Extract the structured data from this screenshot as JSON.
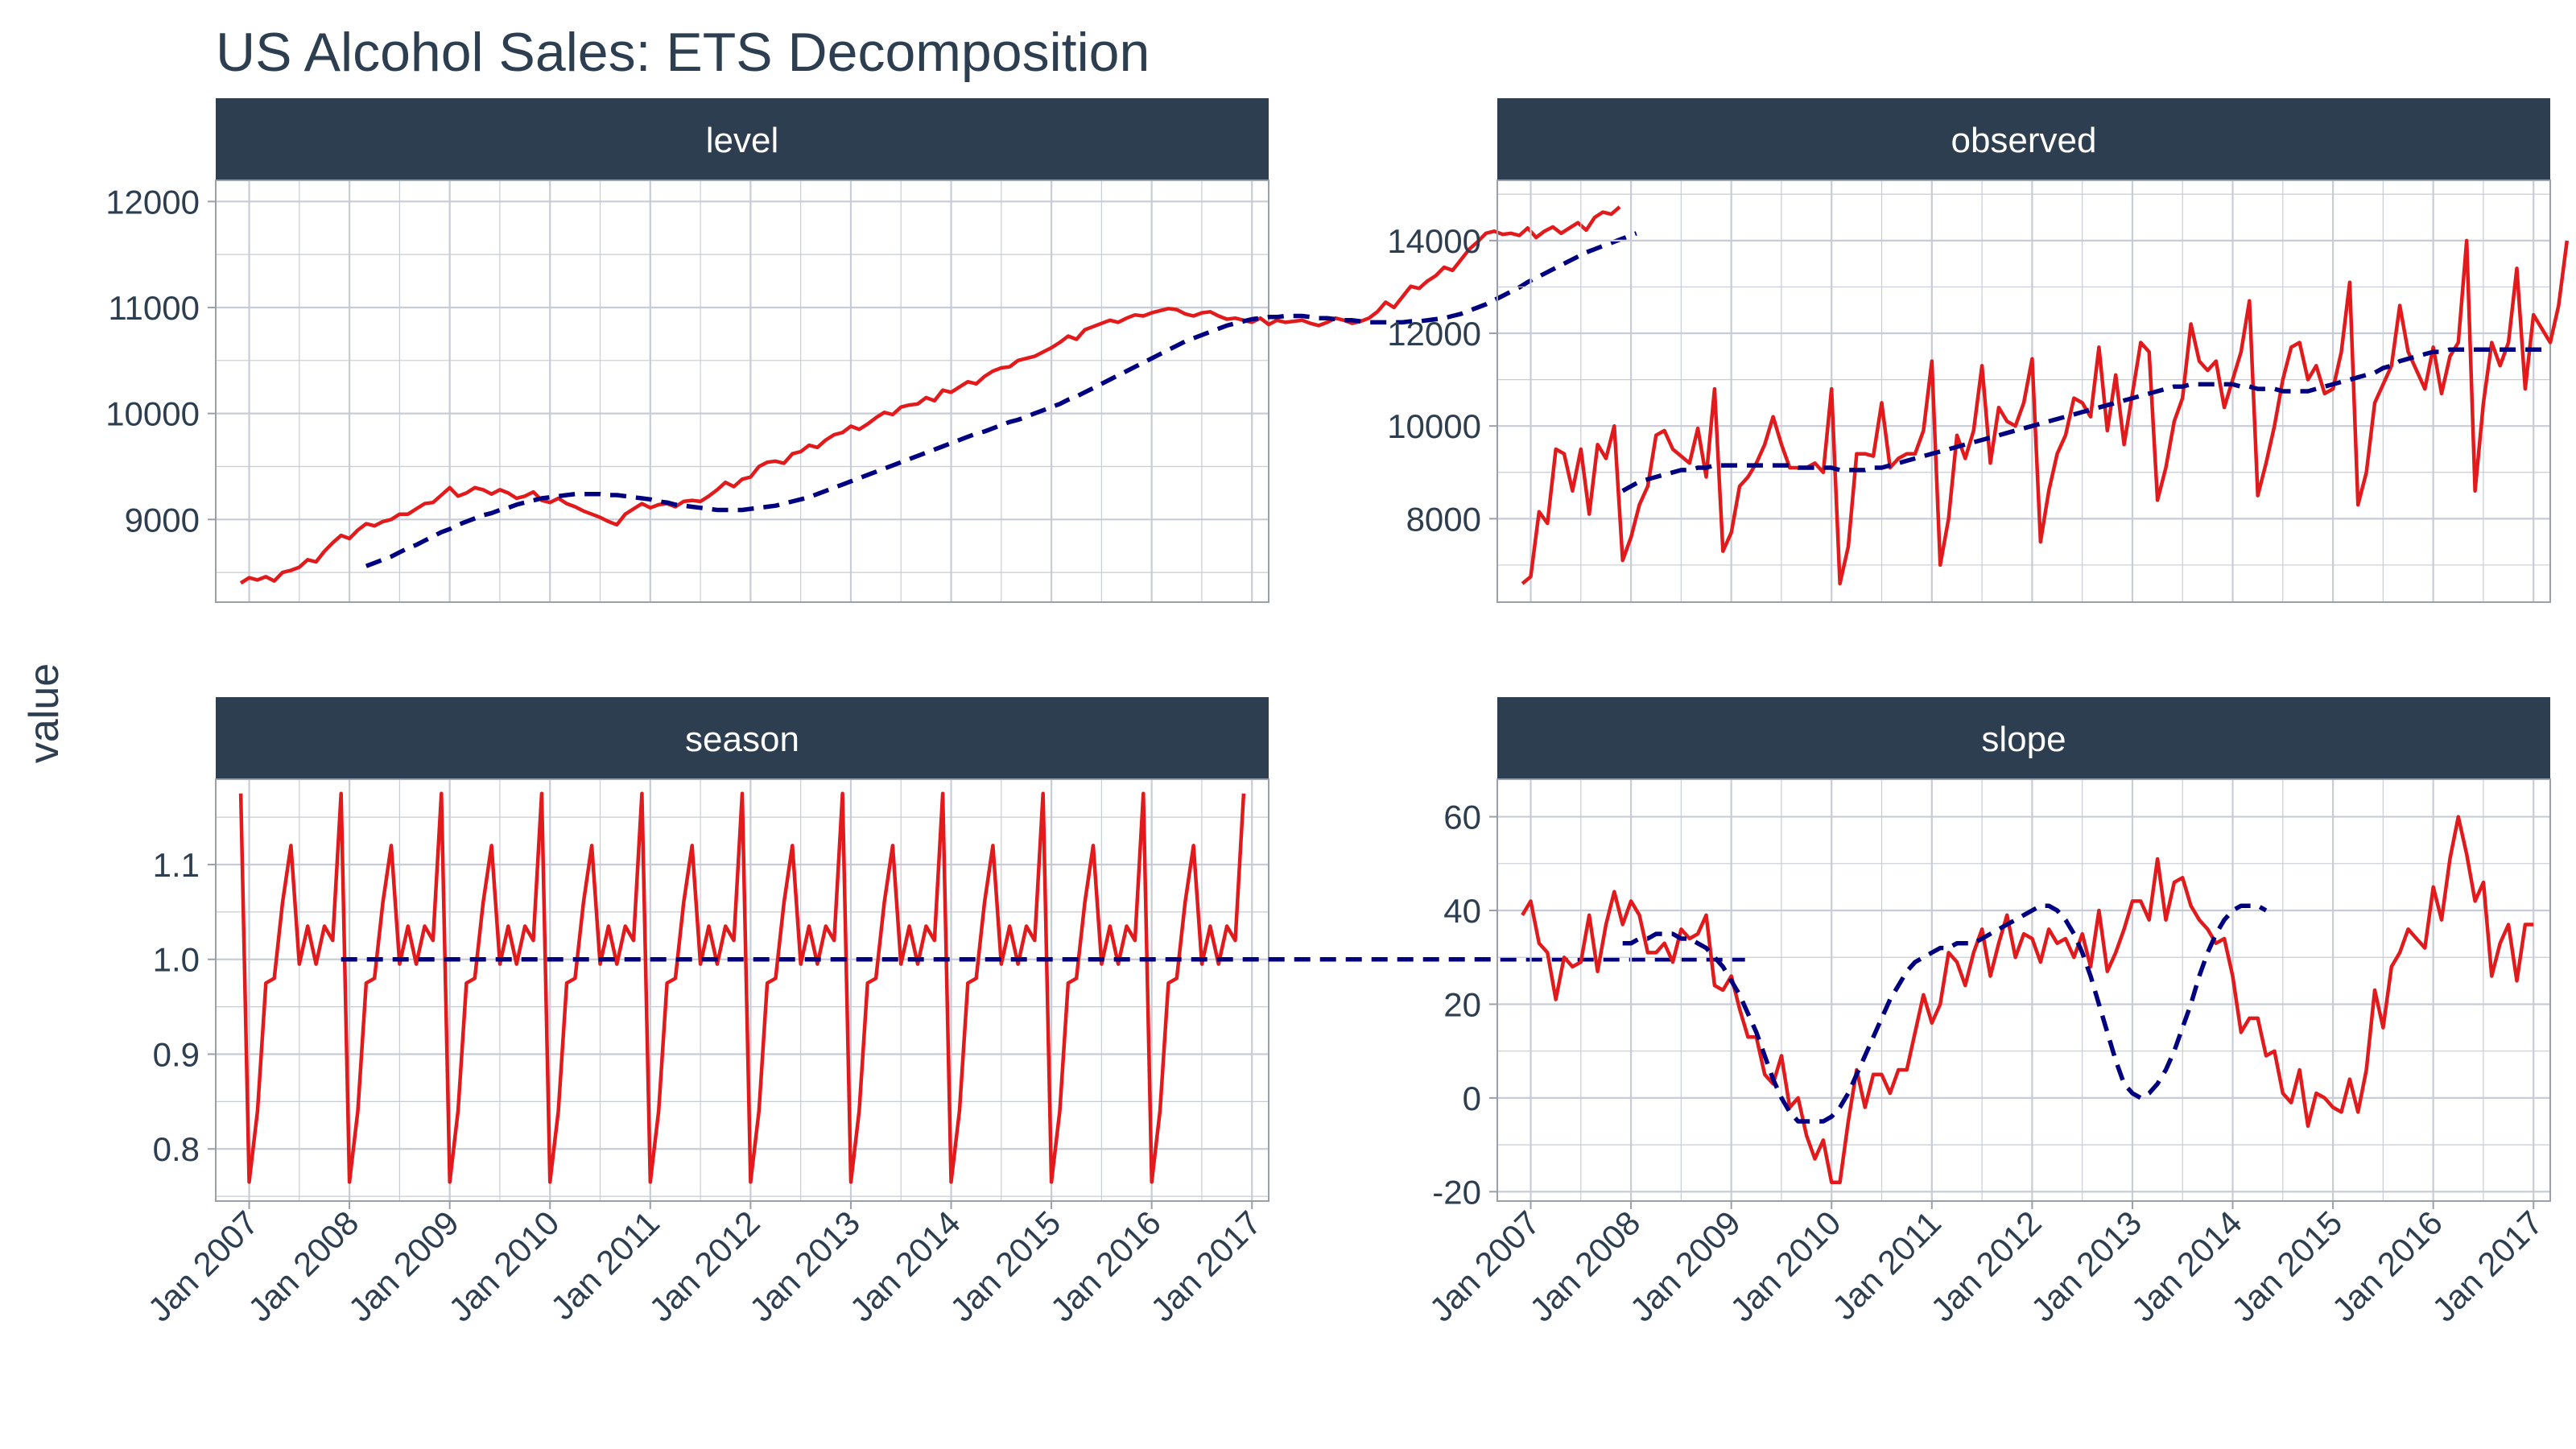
{
  "title": "US Alcohol Sales: ETS Decomposition",
  "ylabel": "value",
  "xlabel": "",
  "colors": {
    "observed": "#e31a1c",
    "trend": "#000080",
    "strip": "#2c3e50",
    "grid": "#c8ccd6",
    "text": "#2c3e50"
  },
  "x_tick_labels": [
    "Jan 2007",
    "Jan 2008",
    "Jan 2009",
    "Jan 2010",
    "Jan 2011",
    "Jan 2012",
    "Jan 2013",
    "Jan 2014",
    "Jan 2015",
    "Jan 2016",
    "Jan 2017"
  ],
  "chart_data": [
    {
      "type": "line",
      "panel": "level",
      "x_range": [
        "2006-09",
        "2017-03"
      ],
      "ylim": [
        8220,
        12200
      ],
      "y_ticks": [
        9000,
        10000,
        11000,
        12000
      ],
      "series": [
        {
          "style": "solid",
          "values": [
            8400,
            8450,
            8430,
            8460,
            8420,
            8500,
            8520,
            8550,
            8620,
            8600,
            8700,
            8780,
            8850,
            8820,
            8900,
            8960,
            8940,
            8980,
            9000,
            9050,
            9050,
            9100,
            9150,
            9160,
            9230,
            9300,
            9220,
            9250,
            9300,
            9280,
            9240,
            9280,
            9250,
            9200,
            9220,
            9260,
            9180,
            9160,
            9200,
            9150,
            9120,
            9080,
            9050,
            9020,
            8980,
            8950,
            9050,
            9100,
            9150,
            9110,
            9140,
            9150,
            9120,
            9170,
            9180,
            9170,
            9220,
            9280,
            9350,
            9310,
            9380,
            9400,
            9500,
            9540,
            9550,
            9530,
            9620,
            9640,
            9700,
            9680,
            9750,
            9800,
            9820,
            9880,
            9850,
            9900,
            9960,
            10010,
            9990,
            10060,
            10080,
            10090,
            10150,
            10120,
            10220,
            10200,
            10250,
            10300,
            10280,
            10350,
            10400,
            10430,
            10440,
            10500,
            10520,
            10540,
            10580,
            10620,
            10670,
            10730,
            10700,
            10790,
            10820,
            10850,
            10880,
            10860,
            10900,
            10930,
            10920,
            10950,
            10970,
            10990,
            10980,
            10940,
            10920,
            10950,
            10960,
            10920,
            10890,
            10900,
            10880,
            10860,
            10900,
            10840,
            10880,
            10860,
            10870,
            10880,
            10850,
            10830,
            10860,
            10900,
            10880,
            10850,
            10870,
            10900,
            10960,
            11050,
            11000,
            11100,
            11200,
            11180,
            11250,
            11300,
            11380,
            11350,
            11450,
            11550,
            11620,
            11700,
            11720,
            11690,
            11700,
            11680,
            11750,
            11660,
            11720,
            11760,
            11700,
            11750,
            11800,
            11730,
            11850,
            11900,
            11880,
            11950
          ]
        },
        {
          "style": "dashed",
          "values": [
            null,
            null,
            null,
            null,
            null,
            null,
            null,
            null,
            null,
            null,
            null,
            null,
            null,
            null,
            null,
            8560,
            8590,
            8620,
            8650,
            8690,
            8730,
            8760,
            8800,
            8840,
            8880,
            8910,
            8950,
            8980,
            9010,
            9040,
            9060,
            9090,
            9110,
            9140,
            9160,
            9180,
            9200,
            9210,
            9220,
            9230,
            9240,
            9240,
            9240,
            9240,
            9230,
            9230,
            9220,
            9210,
            9200,
            9190,
            9170,
            9160,
            9140,
            9130,
            9120,
            9110,
            9100,
            9090,
            9090,
            9090,
            9090,
            9100,
            9110,
            9120,
            9130,
            9150,
            9170,
            9190,
            9210,
            9240,
            9270,
            9300,
            9330,
            9360,
            9390,
            9420,
            9450,
            9480,
            9510,
            9540,
            9570,
            9600,
            9630,
            9660,
            9690,
            9720,
            9750,
            9780,
            9810,
            9830,
            9860,
            9890,
            9920,
            9940,
            9970,
            10000,
            10030,
            10060,
            10090,
            10130,
            10160,
            10200,
            10240,
            10280,
            10320,
            10360,
            10400,
            10440,
            10480,
            10520,
            10560,
            10600,
            10640,
            10680,
            10710,
            10740,
            10770,
            10800,
            10830,
            10850,
            10870,
            10890,
            10900,
            10910,
            10910,
            10920,
            10920,
            10920,
            10910,
            10900,
            10900,
            10890,
            10880,
            10880,
            10870,
            10860,
            10860,
            10860,
            10860,
            10860,
            10870,
            10870,
            10880,
            10890,
            10900,
            10920,
            10940,
            10970,
            11000,
            11030,
            11070,
            11110,
            11150,
            11190,
            11240,
            11280,
            11320,
            11360,
            11400,
            11440,
            11480,
            11520,
            11550,
            11580,
            11610,
            11640,
            11670,
            11700
          ]
        }
      ]
    },
    {
      "type": "line",
      "panel": "observed",
      "x_range": [
        "2006-09",
        "2017-03"
      ],
      "ylim": [
        6200,
        15300
      ],
      "y_ticks": [
        8000,
        10000,
        12000,
        14000
      ],
      "series": [
        {
          "style": "solid",
          "values": [
            6600,
            6750,
            8150,
            7900,
            9500,
            9400,
            8600,
            9500,
            8100,
            9600,
            9300,
            10000,
            7100,
            7600,
            8300,
            8700,
            9800,
            9900,
            9500,
            9350,
            9200,
            9950,
            8900,
            10800,
            7300,
            7700,
            8700,
            8900,
            9200,
            9600,
            10200,
            9600,
            9100,
            9100,
            9100,
            9200,
            9000,
            10800,
            6600,
            7400,
            9400,
            9400,
            9350,
            10500,
            9100,
            9300,
            9400,
            9400,
            9900,
            11400,
            7000,
            8000,
            9800,
            9300,
            9900,
            11300,
            9200,
            10400,
            10100,
            10000,
            10500,
            11450,
            7500,
            8600,
            9400,
            9800,
            10600,
            10500,
            10200,
            11700,
            9900,
            11100,
            9600,
            10700,
            11800,
            11600,
            8400,
            9100,
            10100,
            10600,
            12200,
            11400,
            11200,
            11400,
            10400,
            11000,
            11600,
            12700,
            8500,
            9200,
            10000,
            11000,
            11700,
            11800,
            11000,
            11300,
            10700,
            10800,
            11600,
            13100,
            8300,
            9000,
            10500,
            10900,
            11300,
            12600,
            11600,
            11200,
            10800,
            11700,
            10700,
            11500,
            11800,
            14000,
            8600,
            10500,
            11800,
            11300,
            11800,
            13400,
            10800,
            12400,
            12100,
            11800,
            12600,
            14000
          ]
        },
        {
          "style": "dashed",
          "values": [
            null,
            null,
            null,
            null,
            null,
            null,
            null,
            null,
            null,
            null,
            null,
            null,
            8600,
            8700,
            8800,
            8850,
            8900,
            8950,
            9000,
            9050,
            9050,
            9100,
            9100,
            9150,
            9150,
            9150,
            9150,
            9150,
            9150,
            9150,
            9150,
            9150,
            9150,
            9100,
            9100,
            9100,
            9100,
            9100,
            9050,
            9050,
            9050,
            9050,
            9100,
            9100,
            9150,
            9200,
            9250,
            9300,
            9350,
            9400,
            9450,
            9500,
            9550,
            9600,
            9650,
            9700,
            9750,
            9800,
            9850,
            9900,
            9950,
            10000,
            10050,
            10100,
            10150,
            10200,
            10250,
            10300,
            10350,
            10400,
            10450,
            10500,
            10550,
            10600,
            10650,
            10700,
            10750,
            10800,
            10850,
            10850,
            10900,
            10900,
            10900,
            10900,
            10900,
            10900,
            10850,
            10850,
            10800,
            10800,
            10800,
            10750,
            10750,
            10750,
            10750,
            10800,
            10850,
            10900,
            10950,
            11000,
            11050,
            11100,
            11150,
            11250,
            11300,
            11400,
            11450,
            11500,
            11550,
            11600,
            11600,
            11650,
            11650,
            11650,
            11650,
            11650,
            11650,
            11650,
            11650,
            11650,
            11650,
            11650,
            11650,
            11650
          ]
        }
      ]
    },
    {
      "type": "line",
      "panel": "season",
      "x_range": [
        "2006-09",
        "2017-03"
      ],
      "ylim": [
        0.745,
        1.19
      ],
      "y_ticks": [
        0.8,
        0.9,
        1.0,
        1.1
      ],
      "series": [
        {
          "style": "solid",
          "pattern": [
            1.175,
            0.765,
            0.84,
            0.975,
            0.98,
            1.06,
            1.12,
            0.995,
            1.035,
            0.995,
            1.035,
            1.02
          ],
          "cycles": 10,
          "extra_points": [
            1.175
          ]
        },
        {
          "style": "dashed",
          "values": [
            null,
            null,
            null,
            null,
            null,
            null,
            null,
            null,
            null,
            null,
            null,
            null,
            1.0,
            1.0,
            1.0,
            1.0,
            1.0,
            1.0,
            1.0,
            1.0,
            1.0,
            1.0,
            1.0,
            1.0,
            1.0,
            1.0,
            1.0,
            1.0,
            1.0,
            1.0,
            1.0,
            1.0,
            1.0,
            1.0,
            1.0,
            1.0,
            1.0,
            1.0,
            1.0,
            1.0,
            1.0,
            1.0,
            1.0,
            1.0,
            1.0,
            1.0,
            1.0,
            1.0,
            1.0,
            1.0,
            1.0,
            1.0,
            1.0,
            1.0,
            1.0,
            1.0,
            1.0,
            1.0,
            1.0,
            1.0,
            1.0,
            1.0,
            1.0,
            1.0,
            1.0,
            1.0,
            1.0,
            1.0,
            1.0,
            1.0,
            1.0,
            1.0,
            1.0,
            1.0,
            1.0,
            1.0,
            1.0,
            1.0,
            1.0,
            1.0,
            1.0,
            1.0,
            1.0,
            1.0,
            1.0,
            1.0,
            1.0,
            1.0,
            1.0,
            1.0,
            1.0,
            1.0,
            1.0,
            1.0,
            1.0,
            1.0,
            1.0,
            1.0,
            1.0,
            1.0,
            1.0,
            1.0,
            1.0,
            1.0,
            1.0,
            1.0,
            1.0,
            1.0,
            1.0,
            1.0,
            1.0,
            1.0,
            1.0,
            1.0,
            1.0,
            1.0,
            1.0,
            1.0,
            1.0,
            1.0,
            1.0,
            1.0,
            1.0,
            1.0,
            1.0,
            1.0,
            1.0,
            1.0,
            1.0,
            1.0,
            1.0,
            1.0,
            1.0,
            1.0,
            1.0,
            1.0,
            1.0,
            1.0,
            1.0,
            1.0,
            1.0,
            1.0,
            1.0,
            1.0,
            1.0,
            1.0,
            1.0,
            1.0,
            1.0,
            1.0,
            1.0,
            1.0,
            1.0,
            1.0,
            1.0,
            1.0,
            1.0,
            1.0,
            1.0,
            1.0,
            1.0,
            1.0,
            1.0,
            1.0,
            1.0,
            1.0,
            1.0,
            1.0,
            1.0,
            1.0,
            1.0,
            1.0,
            1.0,
            1.0,
            1.0,
            1.0,
            1.0,
            1.0,
            1.0,
            1.0,
            1.0
          ]
        }
      ]
    },
    {
      "type": "line",
      "panel": "slope",
      "x_range": [
        "2006-09",
        "2017-03"
      ],
      "ylim": [
        -22,
        68
      ],
      "y_ticks": [
        -20,
        0,
        20,
        40,
        60
      ],
      "series": [
        {
          "style": "solid",
          "values": [
            39,
            42,
            33,
            31,
            21,
            30,
            28,
            29,
            39,
            27,
            37,
            44,
            37,
            42,
            39,
            31,
            31,
            33,
            29,
            36,
            34,
            35,
            39,
            24,
            23,
            26,
            19,
            13,
            13,
            5,
            3,
            9,
            -2,
            0,
            -8,
            -13,
            -9,
            -18,
            -18,
            -5,
            6,
            -2,
            5,
            5,
            1,
            6,
            6,
            14,
            22,
            16,
            20,
            31,
            29,
            24,
            31,
            36,
            26,
            33,
            39,
            30,
            35,
            34,
            29,
            36,
            33,
            34,
            30,
            35,
            28,
            40,
            27,
            31,
            36,
            42,
            42,
            38,
            51,
            38,
            46,
            47,
            41,
            38,
            36,
            33,
            34,
            26,
            14,
            17,
            17,
            9,
            10,
            1,
            -1,
            6,
            -6,
            1,
            0,
            -2,
            -3,
            4,
            -3,
            6,
            23,
            15,
            28,
            31,
            36,
            34,
            32,
            45,
            38,
            51,
            60,
            52,
            42,
            46,
            26,
            33,
            37,
            25,
            37,
            37
          ]
        },
        {
          "style": "dashed",
          "values": [
            null,
            null,
            null,
            null,
            null,
            null,
            null,
            null,
            null,
            null,
            null,
            null,
            33,
            33,
            34,
            34,
            35,
            35,
            35,
            34,
            34,
            33,
            32,
            30,
            28,
            25,
            22,
            18,
            14,
            9,
            4,
            0,
            -3,
            -5,
            -5,
            -5,
            -5,
            -4,
            -2,
            1,
            5,
            9,
            13,
            17,
            21,
            24,
            27,
            29,
            30,
            31,
            32,
            32,
            33,
            33,
            33,
            34,
            35,
            36,
            37,
            38,
            39,
            40,
            41,
            41,
            40,
            38,
            35,
            31,
            26,
            20,
            14,
            8,
            3,
            1,
            0,
            1,
            3,
            6,
            10,
            15,
            20,
            26,
            31,
            35,
            38,
            40,
            41,
            41,
            41,
            40
          ]
        }
      ]
    }
  ]
}
